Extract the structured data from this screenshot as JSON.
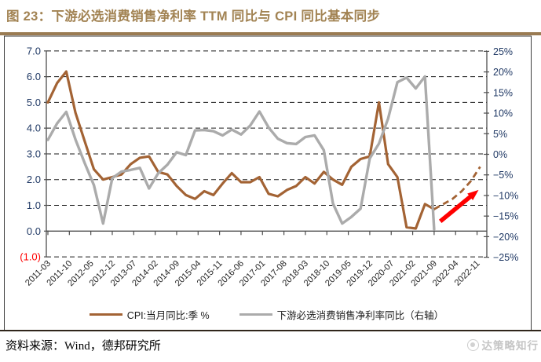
{
  "title": "图 23：下游必选消费销售净利率 TTM 同比与 CPI 同比基本同步",
  "source": {
    "label": "资料来源：Wind，德邦研究所"
  },
  "watermark": {
    "logo": "circle-logo",
    "text": "达策略知行"
  },
  "colors": {
    "title": "#A28353",
    "title_bar": "#9A7B52",
    "cpi_line": "#A36334",
    "npm_line": "#ABABAB",
    "arrow": "#FF0000",
    "axis_label": "#1F3864",
    "negative_label": "#FF0000",
    "date_label": "#262626",
    "gridline": "#1a1a1a",
    "axis_line": "#4d4d4d",
    "frame": "#3d3d3d"
  },
  "legend": [
    {
      "label": "CPI:当月同比:季 %",
      "color": "#A36334"
    },
    {
      "label": "下游必选消费销售净利率同比（右轴）",
      "color": "#ABABAB"
    }
  ],
  "chart_data": {
    "type": "line",
    "title": "下游必选消费销售净利率 TTM 同比与 CPI 同比基本同步",
    "x_unit": "months_since_2011-03",
    "x_axis": {
      "start": "2011-03",
      "end": "2022-11",
      "months_per_tick": 7,
      "tick_labels": [
        "2011-03",
        "2011-10",
        "2012-05",
        "2012-12",
        "2013-07",
        "2014-02",
        "2014-09",
        "2015-04",
        "2015-11",
        "2016-06",
        "2017-01",
        "2017-08",
        "2018-03",
        "2018-10",
        "2019-05",
        "2019-12",
        "2020-07",
        "2021-02",
        "2021-09",
        "2022-04",
        "2022-11"
      ]
    },
    "left_axis": {
      "min": -1,
      "max": 7,
      "ticks": [
        {
          "label": "7.0",
          "value": 7
        },
        {
          "label": "6.0",
          "value": 6
        },
        {
          "label": "5.0",
          "value": 5
        },
        {
          "label": "4.0",
          "value": 4
        },
        {
          "label": "3.0",
          "value": 3
        },
        {
          "label": "2.0",
          "value": 2
        },
        {
          "label": "1.0",
          "value": 1
        },
        {
          "label": "0.0",
          "value": 0
        },
        {
          "label": "(1.0)",
          "value": -1
        }
      ]
    },
    "right_axis": {
      "min": -25,
      "max": 25,
      "ticks": [
        {
          "label": "25%",
          "value": 25
        },
        {
          "label": "20%",
          "value": 20
        },
        {
          "label": "15%",
          "value": 15
        },
        {
          "label": "10%",
          "value": 10
        },
        {
          "label": "5%",
          "value": 5
        },
        {
          "label": "0%",
          "value": 0
        },
        {
          "label": "−5%",
          "value": -5
        },
        {
          "label": "−10%",
          "value": -10
        },
        {
          "label": "−15%",
          "value": -15
        },
        {
          "label": "−20%",
          "value": -20
        },
        {
          "label": "−25%",
          "value": -25
        }
      ]
    },
    "series": [
      {
        "id": "cpi-line",
        "name": "CPI:当月同比:季 %",
        "axis": "left",
        "unit": "%",
        "color": "#A36334",
        "style": "solid",
        "width": 3.2,
        "points": [
          [
            0,
            5.0
          ],
          [
            3,
            5.75
          ],
          [
            6,
            6.2
          ],
          [
            9,
            4.6
          ],
          [
            12,
            3.5
          ],
          [
            15,
            2.4
          ],
          [
            18,
            2.0
          ],
          [
            21,
            2.1
          ],
          [
            24,
            2.2
          ],
          [
            27,
            2.6
          ],
          [
            30,
            2.85
          ],
          [
            33,
            2.9
          ],
          [
            36,
            2.3
          ],
          [
            39,
            2.2
          ],
          [
            42,
            1.75
          ],
          [
            45,
            1.4
          ],
          [
            48,
            1.25
          ],
          [
            51,
            1.55
          ],
          [
            54,
            1.4
          ],
          [
            57,
            1.85
          ],
          [
            60,
            2.25
          ],
          [
            63,
            1.9
          ],
          [
            66,
            1.9
          ],
          [
            69,
            2.1
          ],
          [
            72,
            1.45
          ],
          [
            75,
            1.35
          ],
          [
            78,
            1.6
          ],
          [
            81,
            1.75
          ],
          [
            84,
            2.1
          ],
          [
            87,
            1.85
          ],
          [
            90,
            2.3
          ],
          [
            93,
            2.0
          ],
          [
            96,
            1.8
          ],
          [
            99,
            2.5
          ],
          [
            102,
            2.8
          ],
          [
            105,
            2.9
          ],
          [
            108,
            5.0
          ],
          [
            111,
            2.6
          ],
          [
            114,
            2.1
          ],
          [
            117,
            0.15
          ],
          [
            120,
            0.1
          ],
          [
            123,
            1.05
          ],
          [
            126,
            0.85
          ]
        ]
      },
      {
        "id": "npm-line",
        "name": "下游必选消费销售净利率同比（右轴）",
        "axis": "right",
        "unit": "%",
        "color": "#ABABAB",
        "style": "solid",
        "width": 3.4,
        "points": [
          [
            0,
            3.5
          ],
          [
            3,
            7.5
          ],
          [
            6,
            10.3
          ],
          [
            9,
            3.6
          ],
          [
            12,
            -2.1
          ],
          [
            15,
            -7.5
          ],
          [
            18,
            -16.8
          ],
          [
            21,
            -5.8
          ],
          [
            24,
            -4.2
          ],
          [
            27,
            -3.8
          ],
          [
            30,
            -3.3
          ],
          [
            33,
            -8.3
          ],
          [
            36,
            -4.6
          ],
          [
            39,
            -2.5
          ],
          [
            42,
            0.5
          ],
          [
            45,
            -0.2
          ],
          [
            48,
            5.8
          ],
          [
            51,
            5.9
          ],
          [
            54,
            5.6
          ],
          [
            57,
            4.6
          ],
          [
            60,
            6.0
          ],
          [
            63,
            4.8
          ],
          [
            66,
            7.0
          ],
          [
            69,
            10.4
          ],
          [
            72,
            6.5
          ],
          [
            75,
            3.8
          ],
          [
            78,
            2.7
          ],
          [
            81,
            2.5
          ],
          [
            84,
            4.2
          ],
          [
            87,
            4.6
          ],
          [
            90,
            1.0
          ],
          [
            93,
            -12.0
          ],
          [
            96,
            -16.8
          ],
          [
            99,
            -15.2
          ],
          [
            102,
            -13.2
          ],
          [
            105,
            -1.0
          ],
          [
            108,
            2.6
          ],
          [
            111,
            8.7
          ],
          [
            114,
            17.5
          ],
          [
            117,
            18.6
          ],
          [
            120,
            16.0
          ],
          [
            123,
            18.9
          ],
          [
            126,
            -18.2
          ]
        ]
      },
      {
        "id": "cpi-forecast-line",
        "name": "CPI:当月同比:季 %（虚线延伸）",
        "axis": "left",
        "unit": "%",
        "color": "#A36334",
        "style": "dashed",
        "width": 2.8,
        "points": [
          [
            126,
            0.85
          ],
          [
            129,
            1.05
          ],
          [
            132,
            1.25
          ],
          [
            135,
            1.55
          ],
          [
            138,
            1.95
          ],
          [
            141,
            2.5
          ]
        ]
      }
    ],
    "annotation_arrow": {
      "axis": "left",
      "from": [
        128,
        0.38
      ],
      "to": [
        140.5,
        1.6
      ],
      "color": "#FF0000"
    }
  }
}
